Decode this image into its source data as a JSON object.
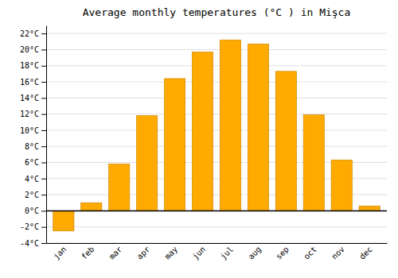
{
  "chart_data": {
    "type": "bar",
    "title": "Average monthly temperatures (°C ) in Mişca",
    "categories": [
      "jan",
      "feb",
      "mar",
      "apr",
      "may",
      "jun",
      "jul",
      "aug",
      "sep",
      "oct",
      "nov",
      "dec"
    ],
    "values": [
      -2.5,
      1.0,
      5.8,
      11.8,
      16.4,
      19.7,
      21.2,
      20.7,
      17.3,
      11.9,
      6.3,
      0.6
    ],
    "color": "#FFAA00",
    "ylim": [
      -4,
      23
    ],
    "yticks": [
      {
        "value": -4,
        "label": "-4°C"
      },
      {
        "value": -2,
        "label": "-2°C"
      },
      {
        "value": 0,
        "label": "0°C"
      },
      {
        "value": 2,
        "label": "2°C"
      },
      {
        "value": 4,
        "label": "4°C"
      },
      {
        "value": 6,
        "label": "6°C"
      },
      {
        "value": 8,
        "label": "8°C"
      },
      {
        "value": 10,
        "label": "10°C"
      },
      {
        "value": 12,
        "label": "12°C"
      },
      {
        "value": 14,
        "label": "14°C"
      },
      {
        "value": 16,
        "label": "16°C"
      },
      {
        "value": 18,
        "label": "18°C"
      },
      {
        "value": 20,
        "label": "20°C"
      },
      {
        "value": 22,
        "label": "22°C"
      }
    ],
    "grid": true
  }
}
